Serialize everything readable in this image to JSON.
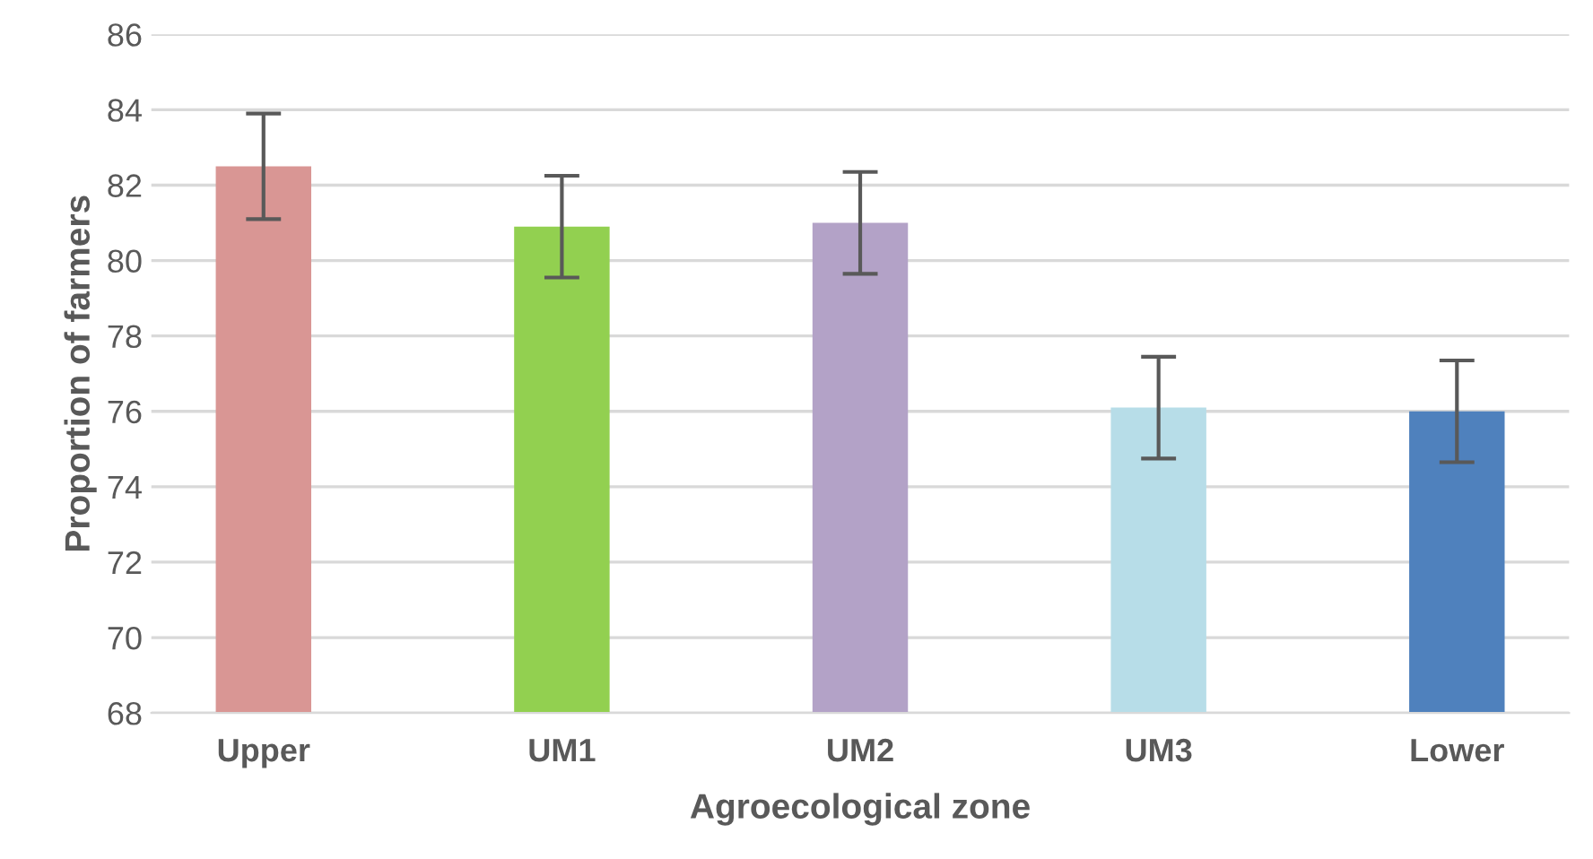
{
  "chart_data": {
    "type": "bar",
    "xlabel": "Agroecological zone",
    "ylabel": "Proportion of farmers",
    "categories": [
      "Upper",
      "UM1",
      "UM2",
      "UM3",
      "Lower"
    ],
    "values": [
      82.5,
      80.9,
      81.0,
      76.1,
      76.0
    ],
    "errors": [
      1.4,
      1.35,
      1.35,
      1.35,
      1.35
    ],
    "colors": [
      "#d99694",
      "#92d050",
      "#b3a2c7",
      "#b7dde8",
      "#4f81bd"
    ],
    "ylim": [
      68,
      86
    ],
    "yticks": [
      68,
      70,
      72,
      74,
      76,
      78,
      80,
      82,
      84,
      86
    ],
    "grid": "y"
  }
}
